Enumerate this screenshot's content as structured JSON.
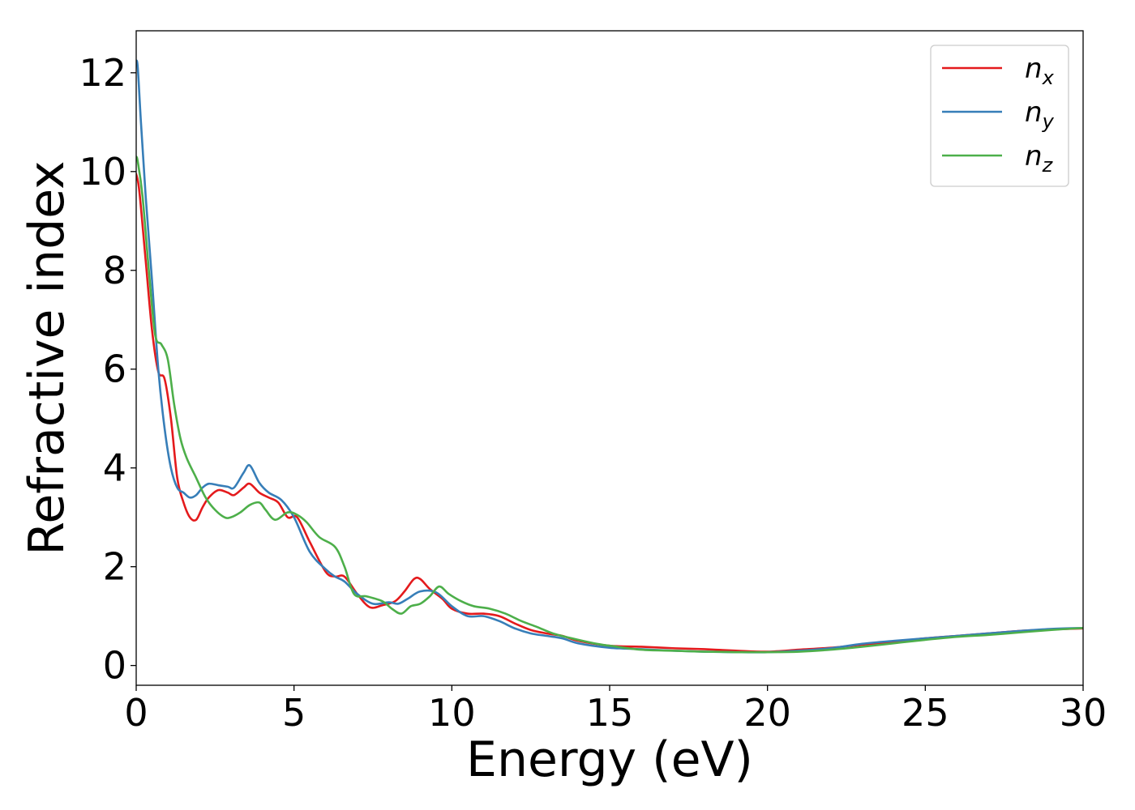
{
  "chart_data": {
    "type": "line",
    "title": "",
    "xlabel": "Energy (eV)",
    "ylabel": "Refractive index",
    "xlim": [
      0,
      30
    ],
    "ylim": [
      -0.4,
      12.85
    ],
    "xticks": [
      0,
      5,
      10,
      15,
      20,
      25,
      30
    ],
    "yticks": [
      0,
      2,
      4,
      6,
      8,
      10,
      12
    ],
    "grid": false,
    "legend_position": "top-right",
    "series": [
      {
        "name": "n",
        "subscript": "x",
        "color": "#e41a1c",
        "x": [
          0,
          0.1,
          0.3,
          0.5,
          0.7,
          0.9,
          1.1,
          1.3,
          1.5,
          1.7,
          1.9,
          2.1,
          2.3,
          2.6,
          2.9,
          3.1,
          3.4,
          3.6,
          3.9,
          4.2,
          4.5,
          4.8,
          5.1,
          5.5,
          6.0,
          6.3,
          6.6,
          7.0,
          7.4,
          7.8,
          8.2,
          8.5,
          8.8,
          9.0,
          9.3,
          9.7,
          10.0,
          10.5,
          11.0,
          11.5,
          12.0,
          12.5,
          13.0,
          13.5,
          14.0,
          15.0,
          16.0,
          17.0,
          18.0,
          19.0,
          20.0,
          21.0,
          22.0,
          23.0,
          24.0,
          25.0,
          26.0,
          27.0,
          28.0,
          29.0,
          30.0
        ],
        "values": [
          9.95,
          9.6,
          8.2,
          6.8,
          5.95,
          5.8,
          5.0,
          3.8,
          3.3,
          3.0,
          2.95,
          3.2,
          3.4,
          3.55,
          3.5,
          3.45,
          3.6,
          3.68,
          3.5,
          3.4,
          3.3,
          3.0,
          3.0,
          2.5,
          1.9,
          1.8,
          1.8,
          1.45,
          1.18,
          1.22,
          1.3,
          1.5,
          1.75,
          1.75,
          1.55,
          1.35,
          1.15,
          1.05,
          1.05,
          1.0,
          0.85,
          0.72,
          0.65,
          0.6,
          0.5,
          0.4,
          0.38,
          0.35,
          0.33,
          0.3,
          0.28,
          0.32,
          0.36,
          0.42,
          0.48,
          0.55,
          0.6,
          0.65,
          0.7,
          0.73,
          0.75
        ]
      },
      {
        "name": "n",
        "subscript": "y",
        "color": "#377eb8",
        "x": [
          0,
          0.05,
          0.15,
          0.3,
          0.5,
          0.7,
          0.9,
          1.1,
          1.3,
          1.5,
          1.7,
          1.9,
          2.1,
          2.3,
          2.6,
          2.9,
          3.1,
          3.4,
          3.6,
          3.9,
          4.2,
          4.6,
          5.0,
          5.5,
          6.0,
          6.3,
          6.6,
          7.0,
          7.5,
          8.0,
          8.3,
          8.6,
          9.0,
          9.5,
          10.0,
          10.5,
          11.0,
          11.5,
          12.0,
          12.5,
          13.0,
          13.5,
          14.0,
          15.0,
          16.0,
          17.0,
          18.0,
          19.0,
          20.0,
          21.0,
          22.0,
          23.0,
          24.0,
          25.0,
          26.0,
          27.0,
          28.0,
          29.0,
          30.0
        ],
        "values": [
          12.25,
          12.1,
          11.0,
          9.5,
          7.8,
          6.0,
          4.8,
          4.0,
          3.6,
          3.5,
          3.4,
          3.45,
          3.6,
          3.68,
          3.65,
          3.62,
          3.6,
          3.9,
          4.05,
          3.7,
          3.5,
          3.35,
          3.0,
          2.3,
          1.95,
          1.8,
          1.7,
          1.45,
          1.25,
          1.28,
          1.25,
          1.35,
          1.5,
          1.48,
          1.2,
          1.0,
          1.0,
          0.9,
          0.75,
          0.65,
          0.6,
          0.55,
          0.45,
          0.36,
          0.33,
          0.3,
          0.28,
          0.27,
          0.27,
          0.3,
          0.35,
          0.44,
          0.5,
          0.55,
          0.6,
          0.65,
          0.7,
          0.74,
          0.76
        ]
      },
      {
        "name": "n",
        "subscript": "z",
        "color": "#4daf4a",
        "x": [
          0,
          0.05,
          0.2,
          0.4,
          0.6,
          0.8,
          1.0,
          1.2,
          1.4,
          1.6,
          1.9,
          2.2,
          2.5,
          2.8,
          3.0,
          3.3,
          3.6,
          3.9,
          4.1,
          4.4,
          4.8,
          5.1,
          5.4,
          5.8,
          6.3,
          6.6,
          6.9,
          7.3,
          7.8,
          8.1,
          8.4,
          8.7,
          9.0,
          9.3,
          9.6,
          9.9,
          10.3,
          10.7,
          11.2,
          11.7,
          12.2,
          12.7,
          13.2,
          13.8,
          14.5,
          15.0,
          16.0,
          17.0,
          18.0,
          19.0,
          20.0,
          21.0,
          22.0,
          23.0,
          24.0,
          25.0,
          26.0,
          27.0,
          28.0,
          29.0,
          30.0
        ],
        "values": [
          10.3,
          10.2,
          9.5,
          8.0,
          6.7,
          6.5,
          6.2,
          5.3,
          4.6,
          4.2,
          3.8,
          3.4,
          3.15,
          3.0,
          3.0,
          3.1,
          3.25,
          3.3,
          3.15,
          2.95,
          3.1,
          3.05,
          2.9,
          2.6,
          2.4,
          2.0,
          1.45,
          1.4,
          1.3,
          1.15,
          1.05,
          1.2,
          1.25,
          1.4,
          1.6,
          1.45,
          1.3,
          1.2,
          1.15,
          1.05,
          0.9,
          0.78,
          0.65,
          0.55,
          0.45,
          0.4,
          0.32,
          0.3,
          0.28,
          0.27,
          0.27,
          0.28,
          0.32,
          0.38,
          0.45,
          0.52,
          0.58,
          0.62,
          0.67,
          0.72,
          0.76
        ]
      }
    ]
  }
}
